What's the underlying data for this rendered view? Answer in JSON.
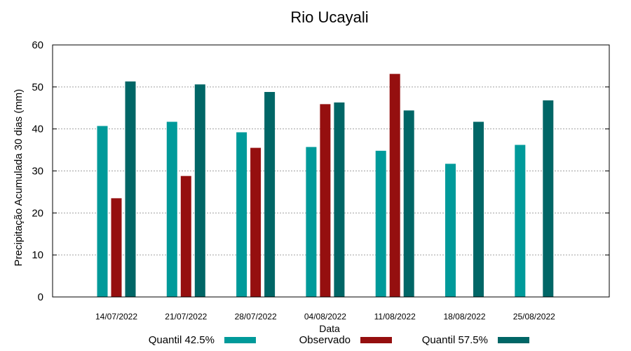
{
  "chart_data": {
    "type": "bar",
    "title": "Rio Ucayali",
    "xlabel": "Data",
    "ylabel": "Precipitação Acumulada 30 dias (mm)",
    "ylim": [
      0,
      60
    ],
    "yticks": [
      0,
      10,
      20,
      30,
      40,
      50,
      60
    ],
    "grid": true,
    "legend_position": "bottom",
    "categories": [
      "14/07/2022",
      "21/07/2022",
      "28/07/2022",
      "04/08/2022",
      "11/08/2022",
      "18/08/2022",
      "25/08/2022"
    ],
    "series": [
      {
        "name": "Quantil 42.5%",
        "color": "#009a9a",
        "values": [
          40.7,
          41.7,
          39.2,
          35.7,
          34.8,
          31.7,
          36.2
        ]
      },
      {
        "name": "Observado",
        "color": "#950f0f",
        "values": [
          23.5,
          28.8,
          35.5,
          45.9,
          53.1,
          null,
          null
        ]
      },
      {
        "name": "Quantil 57.5%",
        "color": "#006666",
        "values": [
          51.3,
          50.6,
          48.8,
          46.3,
          44.4,
          41.7,
          46.8
        ]
      }
    ]
  }
}
